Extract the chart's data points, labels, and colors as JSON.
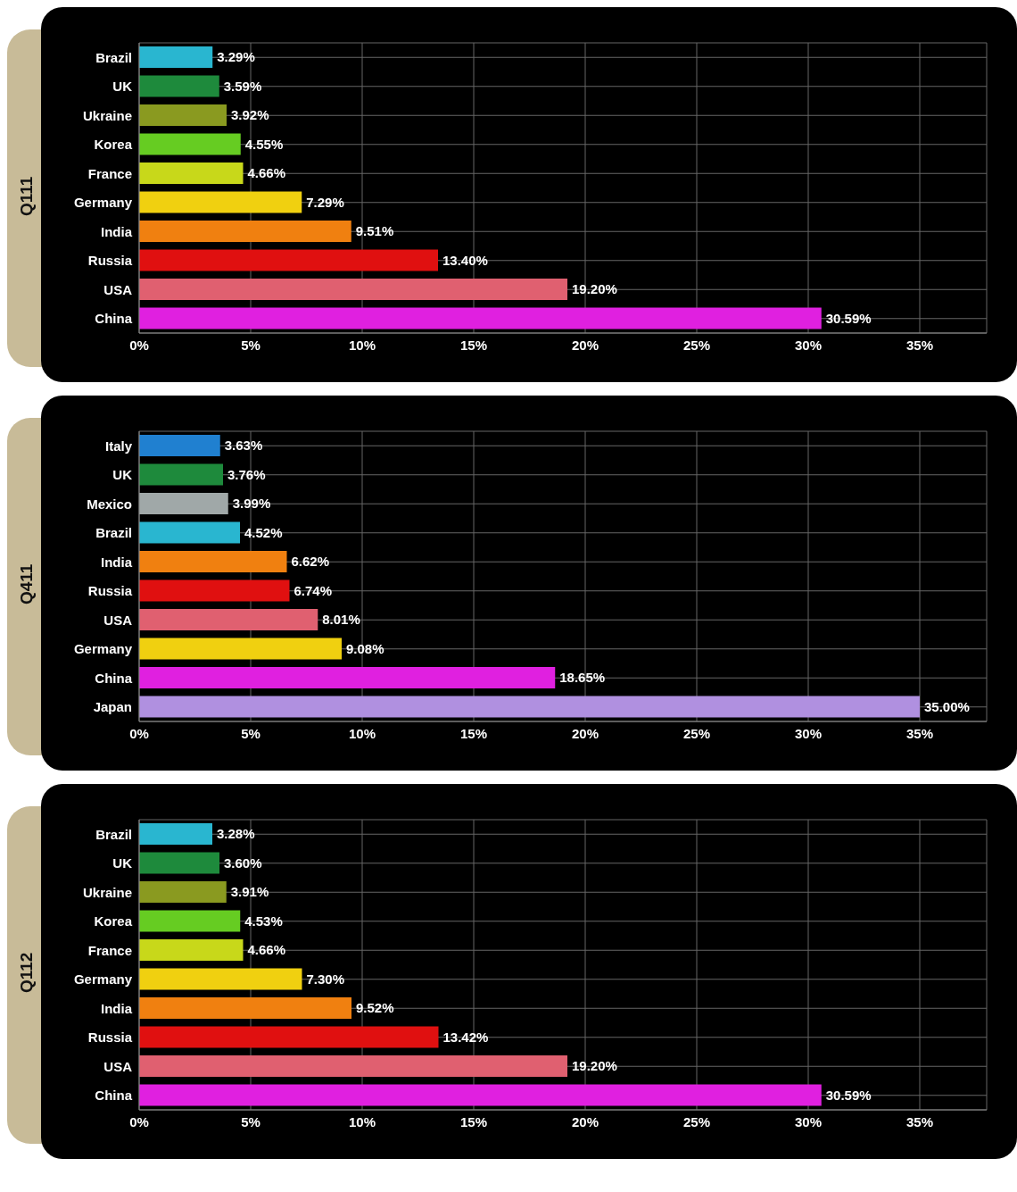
{
  "chart_data": [
    {
      "type": "bar",
      "orientation": "horizontal",
      "ylabel": "Q111",
      "categories": [
        "Brazil",
        "UK",
        "Ukraine",
        "Korea",
        "France",
        "Germany",
        "India",
        "Russia",
        "USA",
        "China"
      ],
      "values": [
        3.29,
        3.59,
        3.92,
        4.55,
        4.66,
        7.29,
        9.51,
        13.4,
        19.2,
        30.59
      ],
      "value_labels": [
        "3.29%",
        "3.59%",
        "3.92%",
        "4.55%",
        "4.66%",
        "7.29%",
        "9.51%",
        "13.40%",
        "19.20%",
        "30.59%"
      ],
      "colors": [
        "#29b6d0",
        "#1e8a3c",
        "#8a9a20",
        "#66cc22",
        "#c8d81a",
        "#f0d010",
        "#f08010",
        "#e01010",
        "#e06070",
        "#e020e0"
      ],
      "xlim": [
        0,
        38
      ],
      "xticks": [
        {
          "value": 0,
          "label": "0%"
        },
        {
          "value": 5,
          "label": "5%"
        },
        {
          "value": 10,
          "label": "10%"
        },
        {
          "value": 15,
          "label": "15%"
        },
        {
          "value": 20,
          "label": "20%"
        },
        {
          "value": 25,
          "label": "25%"
        },
        {
          "value": 30,
          "label": "30%"
        },
        {
          "value": 35,
          "label": "35%"
        }
      ],
      "grid": true
    },
    {
      "type": "bar",
      "orientation": "horizontal",
      "ylabel": "Q411",
      "categories": [
        "Italy",
        "UK",
        "Mexico",
        "Brazil",
        "India",
        "Russia",
        "USA",
        "Germany",
        "China",
        "Japan"
      ],
      "values": [
        3.63,
        3.76,
        3.99,
        4.52,
        6.62,
        6.74,
        8.01,
        9.08,
        18.65,
        35.0
      ],
      "value_labels": [
        "3.63%",
        "3.76%",
        "3.99%",
        "4.52%",
        "6.62%",
        "6.74%",
        "8.01%",
        "9.08%",
        "18.65%",
        "35.00%"
      ],
      "colors": [
        "#2080d0",
        "#1e8a3c",
        "#a0a8a8",
        "#29b6d0",
        "#f08010",
        "#e01010",
        "#e06070",
        "#f0d010",
        "#e020e0",
        "#b090e0"
      ],
      "xlim": [
        0,
        38
      ],
      "xticks": [
        {
          "value": 0,
          "label": "0%"
        },
        {
          "value": 5,
          "label": "5%"
        },
        {
          "value": 10,
          "label": "10%"
        },
        {
          "value": 15,
          "label": "15%"
        },
        {
          "value": 20,
          "label": "20%"
        },
        {
          "value": 25,
          "label": "25%"
        },
        {
          "value": 30,
          "label": "30%"
        },
        {
          "value": 35,
          "label": "35%"
        }
      ],
      "grid": true
    },
    {
      "type": "bar",
      "orientation": "horizontal",
      "ylabel": "Q112",
      "categories": [
        "Brazil",
        "UK",
        "Ukraine",
        "Korea",
        "France",
        "Germany",
        "India",
        "Russia",
        "USA",
        "China"
      ],
      "values": [
        3.28,
        3.6,
        3.91,
        4.53,
        4.66,
        7.3,
        9.52,
        13.42,
        19.2,
        30.59
      ],
      "value_labels": [
        "3.28%",
        "3.60%",
        "3.91%",
        "4.53%",
        "4.66%",
        "7.30%",
        "9.52%",
        "13.42%",
        "19.20%",
        "30.59%"
      ],
      "colors": [
        "#29b6d0",
        "#1e8a3c",
        "#8a9a20",
        "#66cc22",
        "#c8d81a",
        "#f0d010",
        "#f08010",
        "#e01010",
        "#e06070",
        "#e020e0"
      ],
      "xlim": [
        0,
        38
      ],
      "xticks": [
        {
          "value": 0,
          "label": "0%"
        },
        {
          "value": 5,
          "label": "5%"
        },
        {
          "value": 10,
          "label": "10%"
        },
        {
          "value": 15,
          "label": "15%"
        },
        {
          "value": 20,
          "label": "20%"
        },
        {
          "value": 25,
          "label": "25%"
        },
        {
          "value": 30,
          "label": "30%"
        },
        {
          "value": 35,
          "label": "35%"
        }
      ],
      "grid": true
    }
  ]
}
